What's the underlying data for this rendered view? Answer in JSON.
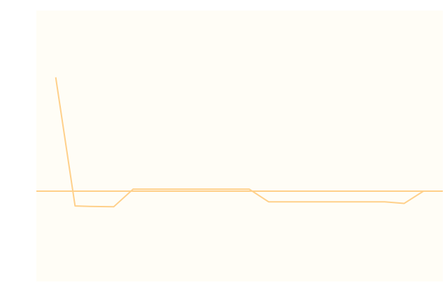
{
  "chart_data": {
    "type": "line",
    "title": "",
    "xlabel": "",
    "ylabel": "",
    "x": [
      1,
      2,
      3,
      4,
      5,
      6,
      7,
      8,
      9,
      10,
      11,
      12,
      13,
      14,
      15,
      16,
      17,
      18,
      19,
      20,
      21
    ],
    "series": [
      {
        "name": "",
        "values": [
          6.3,
          -0.82,
          -0.85,
          -0.86,
          0.11,
          0.11,
          0.11,
          0.11,
          0.11,
          0.11,
          0.11,
          -0.59,
          -0.59,
          -0.59,
          -0.59,
          -0.59,
          -0.59,
          -0.59,
          -0.68,
          0,
          0
        ]
      }
    ],
    "reference_line": {
      "y": 0
    },
    "ylim": [
      -5,
      10
    ],
    "xlim": [
      0,
      21
    ],
    "grid": false,
    "legend": "none",
    "colors": {
      "plot_background": "#fffdf6",
      "line": "#ffd08a",
      "reference_line": "#ffd08a"
    }
  }
}
